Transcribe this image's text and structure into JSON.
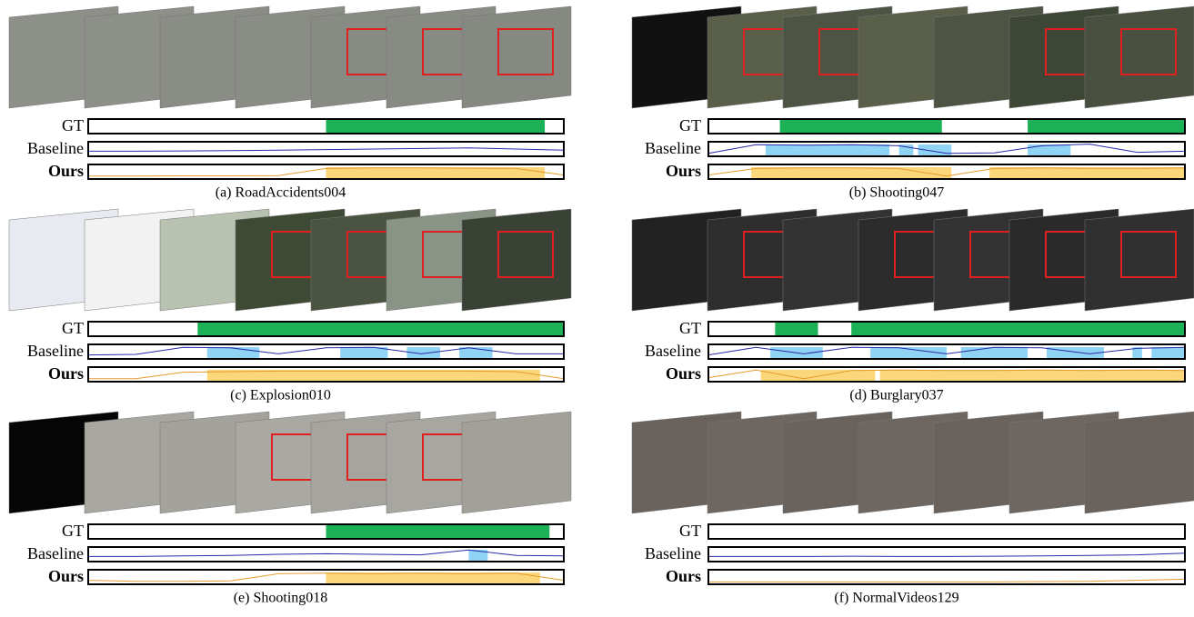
{
  "labels": {
    "gt": "GT",
    "baseline": "Baseline",
    "ours": "Ours"
  },
  "panels": [
    {
      "caption": "(a) RoadAccidents004",
      "gt": [
        [
          0.5,
          0.96
        ]
      ],
      "baseline_regions": [],
      "ours_regions": [
        [
          0.5,
          0.96
        ]
      ],
      "baseline_curve": [
        0.3,
        0.3,
        0.32,
        0.35,
        0.4,
        0.45,
        0.5,
        0.55,
        0.6,
        0.5,
        0.4
      ],
      "ours_curve": [
        0.1,
        0.1,
        0.12,
        0.12,
        0.15,
        0.8,
        0.85,
        0.85,
        0.82,
        0.8,
        0.2
      ]
    },
    {
      "caption": "(b) Shooting047",
      "gt": [
        [
          0.15,
          0.49
        ],
        [
          0.67,
          1
        ]
      ],
      "baseline_regions": [
        [
          0.12,
          0.38
        ],
        [
          0.4,
          0.43
        ],
        [
          0.44,
          0.51
        ],
        [
          0.67,
          0.76
        ]
      ],
      "ours_regions": [
        [
          0.09,
          0.51
        ],
        [
          0.59,
          1
        ]
      ],
      "baseline_curve": [
        0.1,
        0.9,
        0.85,
        0.9,
        0.8,
        0.1,
        0.15,
        0.8,
        0.95,
        0.2,
        0.3
      ],
      "ours_curve": [
        0.2,
        0.8,
        0.85,
        0.85,
        0.8,
        0.1,
        0.8,
        0.85,
        0.8,
        0.8,
        0.85
      ]
    },
    {
      "caption": "(c) Explosion010",
      "gt": [
        [
          0.23,
          1
        ]
      ],
      "baseline_regions": [
        [
          0.25,
          0.36
        ],
        [
          0.53,
          0.63
        ],
        [
          0.67,
          0.74
        ],
        [
          0.78,
          0.85
        ]
      ],
      "ours_regions": [
        [
          0.25,
          0.95
        ]
      ],
      "baseline_curve": [
        0.2,
        0.25,
        0.9,
        0.85,
        0.3,
        0.85,
        0.9,
        0.3,
        0.85,
        0.3,
        0.3
      ],
      "ours_curve": [
        0.1,
        0.1,
        0.7,
        0.75,
        0.8,
        0.8,
        0.8,
        0.8,
        0.8,
        0.75,
        0.1
      ]
    },
    {
      "caption": "(d) Burglary037",
      "gt": [
        [
          0.14,
          0.23
        ],
        [
          0.3,
          1
        ]
      ],
      "baseline_regions": [
        [
          0.13,
          0.24
        ],
        [
          0.34,
          0.5
        ],
        [
          0.53,
          0.67
        ],
        [
          0.71,
          0.83
        ],
        [
          0.89,
          0.91
        ],
        [
          0.93,
          1
        ]
      ],
      "ours_regions": [
        [
          0.11,
          0.35
        ],
        [
          0.36,
          1
        ]
      ],
      "baseline_curve": [
        0.2,
        0.9,
        0.3,
        0.9,
        0.85,
        0.3,
        0.9,
        0.85,
        0.3,
        0.8,
        0.9
      ],
      "ours_curve": [
        0.2,
        0.9,
        0.1,
        0.85,
        0.9,
        0.85,
        0.85,
        0.9,
        0.85,
        0.9,
        0.85
      ]
    },
    {
      "caption": "(e) Shooting018",
      "gt": [
        [
          0.5,
          0.97
        ]
      ],
      "baseline_regions": [
        [
          0.8,
          0.84
        ]
      ],
      "ours_regions": [
        [
          0.5,
          0.95
        ]
      ],
      "baseline_curve": [
        0.3,
        0.3,
        0.35,
        0.4,
        0.5,
        0.55,
        0.5,
        0.45,
        0.9,
        0.4,
        0.35
      ],
      "ours_curve": [
        0.2,
        0.1,
        0.1,
        0.15,
        0.8,
        0.85,
        0.8,
        0.85,
        0.8,
        0.85,
        0.2
      ]
    },
    {
      "caption": "(f) NormalVideos129",
      "gt": [],
      "baseline_regions": [],
      "ours_regions": [],
      "baseline_curve": [
        0.3,
        0.3,
        0.3,
        0.32,
        0.3,
        0.3,
        0.32,
        0.35,
        0.4,
        0.45,
        0.6
      ],
      "ours_curve": [
        0.05,
        0.05,
        0.05,
        0.05,
        0.05,
        0.05,
        0.05,
        0.08,
        0.1,
        0.2,
        0.3
      ]
    }
  ]
}
